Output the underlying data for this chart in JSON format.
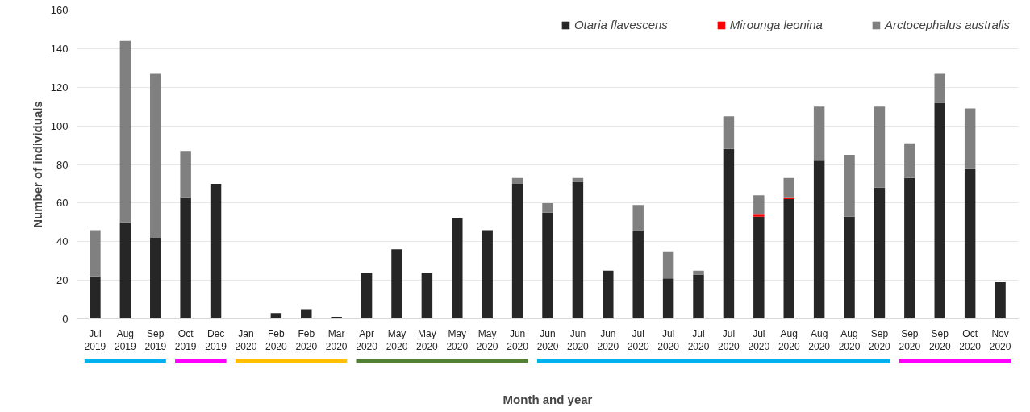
{
  "chart_data": {
    "type": "bar",
    "stacked": true,
    "xlabel": "Month and year",
    "ylabel": "Number of individuals",
    "categories": [
      "Jul 2019",
      "Aug 2019",
      "Sep 2019",
      "Oct 2019",
      "Dec 2019",
      "Jan 2020",
      "Feb 2020",
      "Feb 2020",
      "Mar 2020",
      "Apr 2020",
      "May 2020",
      "May 2020",
      "May 2020",
      "May 2020",
      "Jun 2020",
      "Jun 2020",
      "Jun 2020",
      "Jun 2020",
      "Jul 2020",
      "Jul 2020",
      "Jul 2020",
      "Jul 2020",
      "Jul 2020",
      "Aug 2020",
      "Aug 2020",
      "Aug 2020",
      "Sep 2020",
      "Sep 2020",
      "Sep 2020",
      "Oct 2020",
      "Nov 2020"
    ],
    "series": [
      {
        "name": "Otaria flavescens",
        "color": "#262626",
        "values": [
          22,
          50,
          42,
          63,
          70,
          0,
          3,
          5,
          1,
          24,
          36,
          24,
          52,
          46,
          70,
          55,
          71,
          25,
          46,
          21,
          23,
          88,
          53,
          62,
          82,
          53,
          68,
          73,
          112,
          78,
          19
        ]
      },
      {
        "name": "Mirounga leonina",
        "color": "#ff0000",
        "values": [
          0,
          0,
          0,
          0,
          0,
          0,
          0,
          0,
          0,
          0,
          0,
          0,
          0,
          0,
          0,
          0,
          0,
          0,
          0,
          0,
          0,
          0,
          1,
          1,
          0,
          0,
          0,
          0,
          0,
          0,
          0
        ]
      },
      {
        "name": "Arctocephalus australis",
        "color": "#808080",
        "values": [
          24,
          94,
          85,
          24,
          0,
          0,
          0,
          0,
          0,
          0,
          0,
          0,
          0,
          0,
          3,
          5,
          2,
          0,
          13,
          14,
          2,
          17,
          10,
          10,
          28,
          32,
          42,
          18,
          15,
          31,
          0
        ]
      }
    ],
    "ylim": [
      0,
      160
    ],
    "yticks": [
      0,
      20,
      40,
      60,
      80,
      100,
      120,
      140,
      160
    ],
    "grid": "y",
    "legend": "top right"
  }
}
